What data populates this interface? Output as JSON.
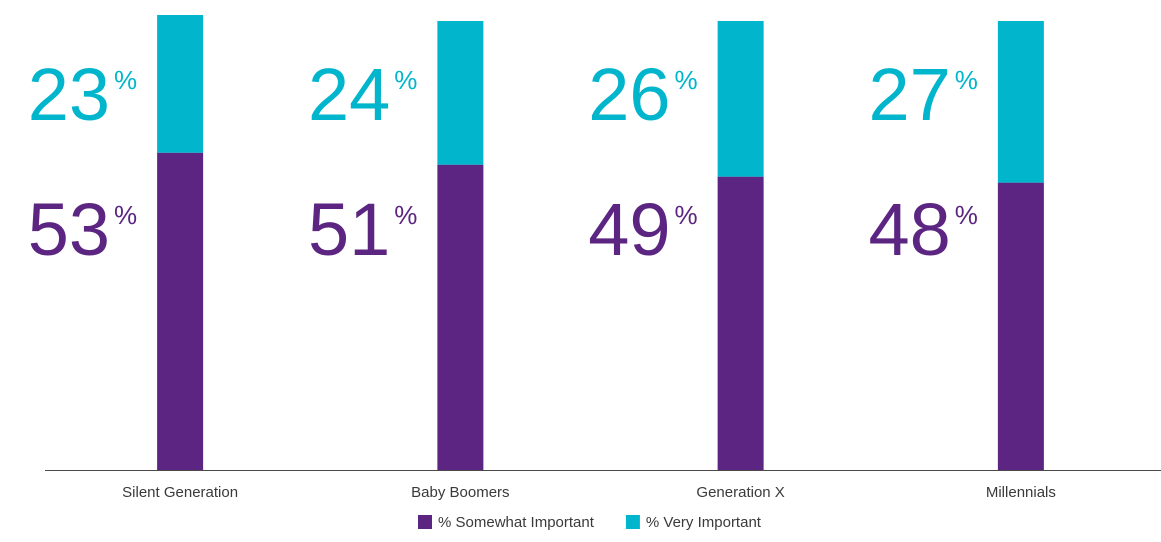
{
  "chart_data": {
    "type": "stacked_bar",
    "categories": [
      "Silent Generation",
      "Baby Boomers",
      "Generation X",
      "Millennials"
    ],
    "series": [
      {
        "name": "% Somewhat Important",
        "color": "#5b2581",
        "values": [
          53,
          51,
          49,
          48
        ],
        "value_labels": [
          "53%",
          "51%",
          "49%",
          "48%"
        ]
      },
      {
        "name": "% Very Important",
        "color": "#00b5cc",
        "values": [
          23,
          24,
          26,
          27
        ],
        "value_labels": [
          "23%",
          "24%",
          "26%",
          "27%"
        ]
      }
    ]
  }
}
